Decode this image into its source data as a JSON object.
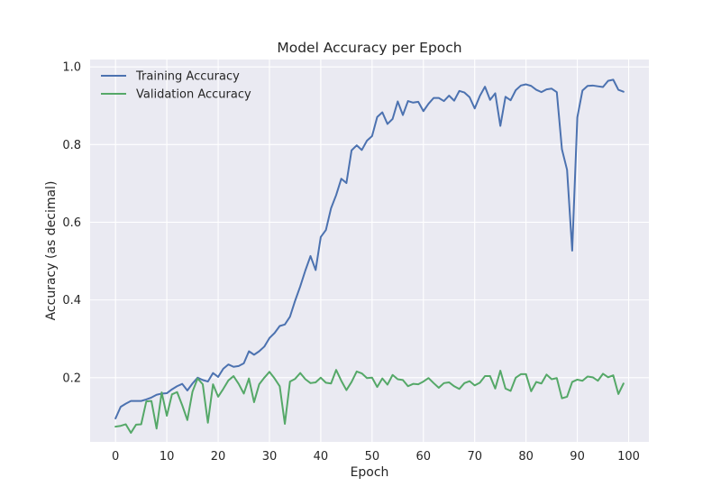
{
  "chart_data": {
    "type": "line",
    "title": "Model Accuracy per Epoch",
    "xlabel": "Epoch",
    "ylabel": "Accuracy (as decimal)",
    "xlim": [
      -4.95,
      103.95
    ],
    "ylim": [
      0.0347,
      1.0189
    ],
    "xticks": [
      0,
      10,
      20,
      30,
      40,
      50,
      60,
      70,
      80,
      90,
      100
    ],
    "yticks": [
      0.2,
      0.4,
      0.6,
      0.8,
      1.0
    ],
    "xtick_labels": [
      "0",
      "10",
      "20",
      "30",
      "40",
      "50",
      "60",
      "70",
      "80",
      "90",
      "100"
    ],
    "ytick_labels": [
      "0.2",
      "0.4",
      "0.6",
      "0.8",
      "1.0"
    ],
    "grid": true,
    "legend_position": "top-left",
    "background": "#eaeaf2",
    "series": [
      {
        "name": "Training Accuracy",
        "color": "#4c72b0",
        "values": [
          0.095,
          0.125,
          0.133,
          0.14,
          0.14,
          0.14,
          0.144,
          0.149,
          0.156,
          0.159,
          0.16,
          0.17,
          0.178,
          0.184,
          0.167,
          0.185,
          0.2,
          0.194,
          0.19,
          0.212,
          0.202,
          0.223,
          0.234,
          0.228,
          0.23,
          0.237,
          0.268,
          0.259,
          0.268,
          0.28,
          0.302,
          0.315,
          0.333,
          0.337,
          0.357,
          0.398,
          0.435,
          0.476,
          0.513,
          0.477,
          0.562,
          0.58,
          0.636,
          0.67,
          0.712,
          0.701,
          0.785,
          0.798,
          0.786,
          0.81,
          0.822,
          0.871,
          0.883,
          0.853,
          0.866,
          0.911,
          0.876,
          0.912,
          0.908,
          0.91,
          0.886,
          0.905,
          0.92,
          0.92,
          0.912,
          0.926,
          0.913,
          0.938,
          0.934,
          0.922,
          0.893,
          0.925,
          0.949,
          0.915,
          0.932,
          0.848,
          0.923,
          0.914,
          0.94,
          0.952,
          0.955,
          0.951,
          0.941,
          0.935,
          0.942,
          0.944,
          0.935,
          0.788,
          0.735,
          0.527,
          0.87,
          0.939,
          0.951,
          0.952,
          0.95,
          0.948,
          0.964,
          0.967,
          0.941,
          0.936
        ]
      },
      {
        "name": "Validation Accuracy",
        "color": "#55a868",
        "values": [
          0.074,
          0.076,
          0.08,
          0.058,
          0.079,
          0.08,
          0.139,
          0.14,
          0.069,
          0.162,
          0.102,
          0.157,
          0.163,
          0.129,
          0.091,
          0.164,
          0.198,
          0.183,
          0.084,
          0.183,
          0.151,
          0.171,
          0.193,
          0.204,
          0.184,
          0.159,
          0.198,
          0.137,
          0.183,
          0.2,
          0.215,
          0.198,
          0.178,
          0.081,
          0.19,
          0.197,
          0.212,
          0.196,
          0.186,
          0.188,
          0.2,
          0.187,
          0.185,
          0.22,
          0.192,
          0.168,
          0.189,
          0.216,
          0.211,
          0.199,
          0.2,
          0.176,
          0.198,
          0.182,
          0.207,
          0.196,
          0.194,
          0.178,
          0.184,
          0.183,
          0.19,
          0.199,
          0.186,
          0.174,
          0.186,
          0.188,
          0.178,
          0.171,
          0.186,
          0.191,
          0.18,
          0.187,
          0.204,
          0.204,
          0.172,
          0.218,
          0.172,
          0.166,
          0.2,
          0.209,
          0.209,
          0.165,
          0.189,
          0.185,
          0.208,
          0.196,
          0.199,
          0.147,
          0.151,
          0.189,
          0.195,
          0.192,
          0.203,
          0.201,
          0.192,
          0.21,
          0.201,
          0.206,
          0.158,
          0.185
        ]
      }
    ]
  }
}
